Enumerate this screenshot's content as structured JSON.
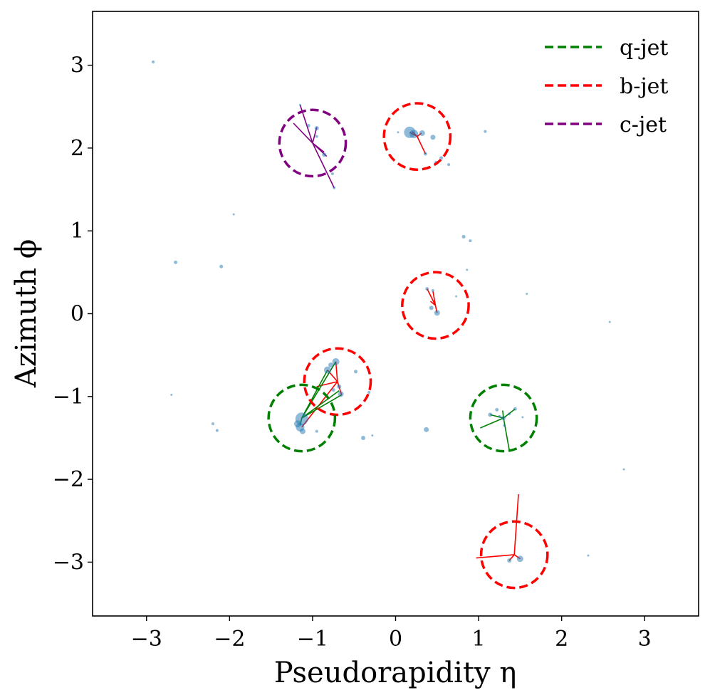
{
  "chart_data": {
    "type": "scatter",
    "title": "",
    "xlabel": "Pseudorapidity η",
    "ylabel": "Azimuth ϕ",
    "xlim": [
      -3.65,
      3.65
    ],
    "ylim": [
      -3.65,
      3.65
    ],
    "xticks": [
      -3,
      -2,
      -1,
      0,
      1,
      2,
      3
    ],
    "yticks": [
      -3,
      -2,
      -1,
      0,
      1,
      2,
      3
    ],
    "grid": false,
    "legend_position": "top-right",
    "colors": {
      "particles": "#1f77b4",
      "q-jet": "#008000",
      "b-jet": "#ff0000",
      "c-jet": "#800080"
    },
    "legend": [
      {
        "label": "q-jet",
        "color": "#008000"
      },
      {
        "label": "b-jet",
        "color": "#ff0000"
      },
      {
        "label": "c-jet",
        "color": "#800080"
      }
    ],
    "jet_radius": 0.4,
    "jets": [
      {
        "type": "c-jet",
        "eta": -1.0,
        "phi": 2.06,
        "lines": [
          [
            -1.15,
            2.52
          ],
          [
            -1.23,
            2.3
          ],
          [
            -0.74,
            1.52
          ],
          [
            -0.95,
            2.25
          ],
          [
            -0.83,
            1.9
          ],
          [
            -0.86,
            1.95
          ]
        ]
      },
      {
        "type": "b-jet",
        "eta": 0.26,
        "phi": 2.14,
        "lines": [
          [
            0.17,
            2.19
          ],
          [
            0.36,
            1.93
          ],
          [
            0.31,
            2.18
          ],
          [
            0.2,
            2.2
          ]
        ]
      },
      {
        "type": "b-jet",
        "eta": 0.48,
        "phi": 0.1,
        "lines": [
          [
            0.38,
            0.3
          ],
          [
            0.45,
            0.27
          ],
          [
            0.5,
            0.01
          ],
          [
            0.42,
            0.15
          ]
        ]
      },
      {
        "type": "b-jet",
        "eta": -0.7,
        "phi": -0.82,
        "lines": [
          [
            -1.13,
            -1.37
          ],
          [
            -0.72,
            -0.58
          ],
          [
            -0.82,
            -0.68
          ],
          [
            -0.65,
            -0.98
          ],
          [
            -0.95,
            -0.88
          ]
        ]
      },
      {
        "type": "q-jet",
        "eta": -1.13,
        "phi": -1.26,
        "lines": [
          [
            -0.72,
            -0.58
          ],
          [
            -0.82,
            -0.68
          ],
          [
            -0.65,
            -0.98
          ],
          [
            -0.68,
            -0.93
          ],
          [
            -1.15,
            -1.35
          ]
        ]
      },
      {
        "type": "q-jet",
        "eta": 1.3,
        "phi": -1.26,
        "lines": [
          [
            1.02,
            -1.38
          ],
          [
            1.14,
            -1.22
          ],
          [
            1.29,
            -1.17
          ],
          [
            1.37,
            -1.65
          ],
          [
            1.44,
            -1.15
          ]
        ]
      },
      {
        "type": "b-jet",
        "eta": 1.43,
        "phi": -2.91,
        "lines": [
          [
            1.48,
            -2.18
          ],
          [
            0.97,
            -2.95
          ],
          [
            1.37,
            -2.98
          ],
          [
            1.5,
            -2.96
          ]
        ]
      }
    ],
    "particles": [
      {
        "eta": -2.92,
        "phi": 3.04,
        "r": 2
      },
      {
        "eta": -1.95,
        "phi": 1.2,
        "r": 1.5
      },
      {
        "eta": -2.65,
        "phi": 0.62,
        "r": 2.5
      },
      {
        "eta": -2.1,
        "phi": 0.57,
        "r": 2.5
      },
      {
        "eta": -2.7,
        "phi": -0.98,
        "r": 1.5
      },
      {
        "eta": -2.2,
        "phi": -1.33,
        "r": 2
      },
      {
        "eta": -2.15,
        "phi": -1.41,
        "r": 2
      },
      {
        "eta": 1.08,
        "phi": 2.2,
        "r": 2
      },
      {
        "eta": 0.82,
        "phi": 0.93,
        "r": 2.5
      },
      {
        "eta": 0.9,
        "phi": 0.88,
        "r": 2
      },
      {
        "eta": 0.86,
        "phi": 0.53,
        "r": 1.5
      },
      {
        "eta": 1.58,
        "phi": 0.24,
        "r": 1.5
      },
      {
        "eta": 0.73,
        "phi": 0.21,
        "r": 1.5
      },
      {
        "eta": 2.58,
        "phi": -0.1,
        "r": 1.5
      },
      {
        "eta": 2.75,
        "phi": -1.88,
        "r": 1.5
      },
      {
        "eta": 2.32,
        "phi": -2.92,
        "r": 1.5
      },
      {
        "eta": 0.37,
        "phi": -1.4,
        "r": 3.5
      },
      {
        "eta": -0.39,
        "phi": -1.5,
        "r": 3
      },
      {
        "eta": -0.28,
        "phi": -1.47,
        "r": 1.5
      },
      {
        "eta": -0.32,
        "phi": -0.95,
        "r": 2
      },
      {
        "eta": -0.48,
        "phi": -0.7,
        "r": 2.5
      },
      {
        "eta": -0.95,
        "phi": -1.42,
        "r": 2
      },
      {
        "eta": 0.03,
        "phi": 2.19,
        "r": 1.5
      },
      {
        "eta": 0.17,
        "phi": 2.19,
        "r": 8
      },
      {
        "eta": 0.22,
        "phi": 2.17,
        "r": 6
      },
      {
        "eta": 0.32,
        "phi": 2.18,
        "r": 4
      },
      {
        "eta": 0.45,
        "phi": 2.13,
        "r": 3.5
      },
      {
        "eta": 0.36,
        "phi": 1.93,
        "r": 2.5
      },
      {
        "eta": 0.49,
        "phi": 1.82,
        "r": 3
      },
      {
        "eta": 0.55,
        "phi": 1.88,
        "r": 2.5
      },
      {
        "eta": 0.64,
        "phi": 1.8,
        "r": 2
      },
      {
        "eta": -1.05,
        "phi": 2.27,
        "r": 2.5
      },
      {
        "eta": -0.95,
        "phi": 2.24,
        "r": 3
      },
      {
        "eta": -0.95,
        "phi": 2.14,
        "r": 2
      },
      {
        "eta": -0.86,
        "phi": 1.92,
        "r": 3
      },
      {
        "eta": -0.76,
        "phi": 1.69,
        "r": 2
      },
      {
        "eta": -0.74,
        "phi": 1.52,
        "r": 2
      },
      {
        "eta": -1.15,
        "phi": 2.52,
        "r": 1.5
      },
      {
        "eta": 0.38,
        "phi": 0.3,
        "r": 2.5
      },
      {
        "eta": 0.45,
        "phi": 0.28,
        "r": 2
      },
      {
        "eta": 0.43,
        "phi": 0.07,
        "r": 3
      },
      {
        "eta": 0.5,
        "phi": 0.01,
        "r": 4
      },
      {
        "eta": -0.72,
        "phi": -0.58,
        "r": 5
      },
      {
        "eta": -0.82,
        "phi": -0.68,
        "r": 5
      },
      {
        "eta": -0.78,
        "phi": -0.62,
        "r": 3.5
      },
      {
        "eta": -0.68,
        "phi": -0.88,
        "r": 3
      },
      {
        "eta": -0.66,
        "phi": -0.97,
        "r": 4
      },
      {
        "eta": -0.75,
        "phi": -0.92,
        "r": 2.5
      },
      {
        "eta": -1.13,
        "phi": -1.27,
        "r": 9
      },
      {
        "eta": -1.15,
        "phi": -1.37,
        "r": 6
      },
      {
        "eta": -1.18,
        "phi": -1.33,
        "r": 5
      },
      {
        "eta": -1.12,
        "phi": -1.42,
        "r": 4
      },
      {
        "eta": 1.14,
        "phi": -1.22,
        "r": 3
      },
      {
        "eta": 1.22,
        "phi": -1.16,
        "r": 2.5
      },
      {
        "eta": 1.25,
        "phi": -1.24,
        "r": 2
      },
      {
        "eta": 1.3,
        "phi": -1.26,
        "r": 3
      },
      {
        "eta": 1.37,
        "phi": -1.21,
        "r": 2
      },
      {
        "eta": 1.44,
        "phi": -1.15,
        "r": 2.5
      },
      {
        "eta": 1.53,
        "phi": -1.25,
        "r": 1.5
      },
      {
        "eta": 1.31,
        "phi": -1.35,
        "r": 2
      },
      {
        "eta": 1.5,
        "phi": -2.96,
        "r": 4.5
      },
      {
        "eta": 1.37,
        "phi": -2.98,
        "r": 3
      }
    ]
  }
}
